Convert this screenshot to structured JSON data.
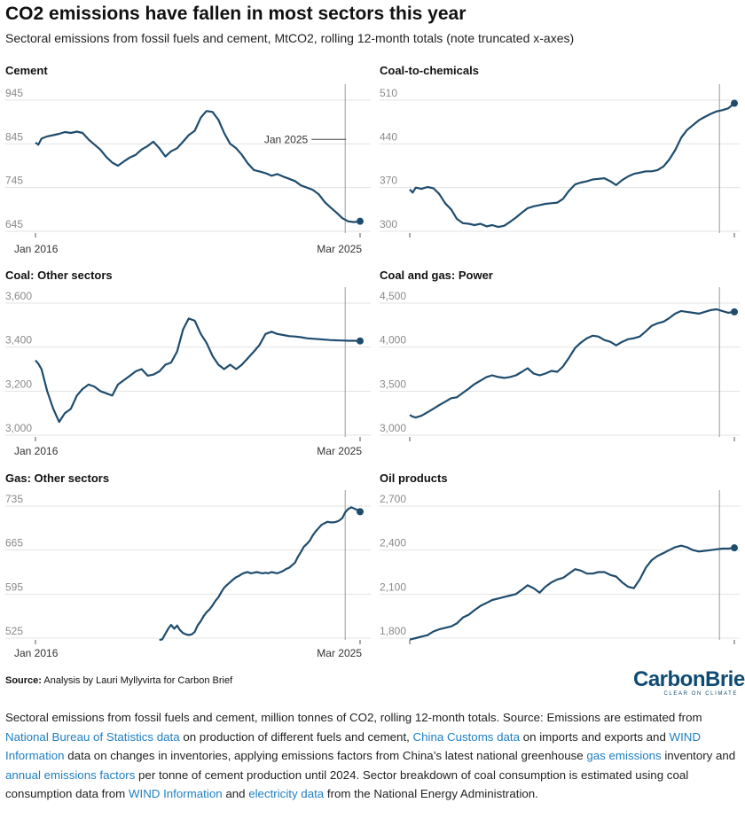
{
  "header": {
    "title": "CO2 emissions have fallen in most sectors this year",
    "subtitle": "Sectoral emissions from fossil fuels and cement, MtCO2, rolling 12-month totals (note truncated x-axes)"
  },
  "colors": {
    "line": "#1e4c6e",
    "grid": "#e3e3e3",
    "marker": "#999999",
    "tick_text": "#8a8a8a",
    "link": "#1f7fc2",
    "brand": "#0e4b73"
  },
  "chart_data": [
    {
      "type": "line",
      "title": "Cement",
      "x_range": [
        2016.0,
        2025.17
      ],
      "x_tick_labels": [
        "Jan 2016",
        "Mar 2025"
      ],
      "y_ticks": [
        645,
        745,
        845,
        945
      ],
      "y_tick_labels": [
        "645",
        "745",
        "845",
        "945"
      ],
      "ylim": [
        645,
        945
      ],
      "annotation": "Jan 2025",
      "x": [
        2016.0,
        2016.08,
        2016.17,
        2016.33,
        2016.5,
        2016.67,
        2016.83,
        2017.0,
        2017.17,
        2017.33,
        2017.5,
        2017.67,
        2017.83,
        2018.0,
        2018.17,
        2018.33,
        2018.5,
        2018.67,
        2018.83,
        2019.0,
        2019.17,
        2019.33,
        2019.5,
        2019.67,
        2019.83,
        2020.0,
        2020.17,
        2020.33,
        2020.5,
        2020.67,
        2020.83,
        2021.0,
        2021.17,
        2021.33,
        2021.5,
        2021.67,
        2021.83,
        2022.0,
        2022.17,
        2022.33,
        2022.5,
        2022.67,
        2022.83,
        2023.0,
        2023.17,
        2023.33,
        2023.5,
        2023.67,
        2023.83,
        2024.0,
        2024.17,
        2024.33,
        2024.5,
        2024.67,
        2024.83,
        2025.0,
        2025.17
      ],
      "y": [
        848,
        843,
        857,
        862,
        865,
        868,
        872,
        870,
        873,
        870,
        855,
        843,
        832,
        815,
        802,
        795,
        805,
        814,
        820,
        832,
        840,
        850,
        835,
        816,
        828,
        835,
        850,
        865,
        875,
        905,
        920,
        918,
        900,
        870,
        845,
        835,
        820,
        800,
        785,
        782,
        778,
        772,
        776,
        770,
        765,
        760,
        750,
        745,
        740,
        730,
        712,
        700,
        688,
        675,
        668,
        666,
        668
      ]
    },
    {
      "type": "line",
      "title": "Coal-to-chemicals",
      "x_range": [
        2016.0,
        2025.17
      ],
      "x_tick_labels": [],
      "y_ticks": [
        300,
        370,
        440,
        510
      ],
      "y_tick_labels": [
        "300",
        "370",
        "440",
        "510"
      ],
      "ylim": [
        300,
        510
      ],
      "x": [
        2016.0,
        2016.08,
        2016.17,
        2016.33,
        2016.5,
        2016.67,
        2016.83,
        2017.0,
        2017.17,
        2017.33,
        2017.5,
        2017.67,
        2017.83,
        2018.0,
        2018.17,
        2018.33,
        2018.5,
        2018.67,
        2018.83,
        2019.0,
        2019.17,
        2019.33,
        2019.5,
        2019.67,
        2019.83,
        2020.0,
        2020.17,
        2020.33,
        2020.5,
        2020.67,
        2020.83,
        2021.0,
        2021.17,
        2021.33,
        2021.5,
        2021.67,
        2021.83,
        2022.0,
        2022.17,
        2022.33,
        2022.5,
        2022.67,
        2022.83,
        2023.0,
        2023.17,
        2023.33,
        2023.5,
        2023.67,
        2023.83,
        2024.0,
        2024.17,
        2024.33,
        2024.5,
        2024.67,
        2024.83,
        2025.0,
        2025.17
      ],
      "y": [
        367,
        362,
        370,
        368,
        371,
        369,
        360,
        345,
        335,
        320,
        313,
        312,
        310,
        312,
        308,
        310,
        307,
        309,
        315,
        322,
        330,
        337,
        340,
        342,
        344,
        345,
        346,
        352,
        365,
        375,
        378,
        380,
        383,
        384,
        385,
        380,
        374,
        382,
        388,
        392,
        394,
        396,
        396,
        398,
        404,
        415,
        430,
        450,
        462,
        470,
        478,
        483,
        488,
        492,
        494,
        497,
        505
      ]
    },
    {
      "type": "line",
      "title": "Coal: Other sectors",
      "x_range": [
        2016.0,
        2025.17
      ],
      "x_tick_labels": [
        "Jan 2016",
        "Mar 2025"
      ],
      "y_ticks": [
        3000,
        3200,
        3400,
        3600
      ],
      "y_tick_labels": [
        "3,000",
        "3,200",
        "3,400",
        "3,600"
      ],
      "ylim": [
        3000,
        3600
      ],
      "x": [
        2016.0,
        2016.08,
        2016.17,
        2016.33,
        2016.5,
        2016.67,
        2016.83,
        2017.0,
        2017.17,
        2017.33,
        2017.5,
        2017.67,
        2017.83,
        2018.0,
        2018.17,
        2018.33,
        2018.5,
        2018.67,
        2018.83,
        2019.0,
        2019.17,
        2019.33,
        2019.5,
        2019.67,
        2019.83,
        2020.0,
        2020.17,
        2020.33,
        2020.5,
        2020.67,
        2020.83,
        2021.0,
        2021.17,
        2021.33,
        2021.5,
        2021.67,
        2021.83,
        2022.0,
        2022.17,
        2022.33,
        2022.5,
        2022.67,
        2022.83,
        2023.0,
        2023.17,
        2023.33,
        2023.5,
        2023.67,
        2023.83,
        2024.0,
        2024.17,
        2024.33,
        2024.5,
        2024.67,
        2024.83,
        2025.0,
        2025.17
      ],
      "y": [
        3340,
        3325,
        3300,
        3200,
        3120,
        3060,
        3100,
        3120,
        3180,
        3210,
        3230,
        3220,
        3200,
        3190,
        3180,
        3230,
        3250,
        3270,
        3290,
        3300,
        3270,
        3275,
        3290,
        3320,
        3330,
        3380,
        3480,
        3530,
        3520,
        3460,
        3420,
        3360,
        3320,
        3300,
        3320,
        3300,
        3320,
        3350,
        3380,
        3410,
        3460,
        3470,
        3460,
        3455,
        3450,
        3448,
        3445,
        3440,
        3438,
        3436,
        3434,
        3432,
        3431,
        3430,
        3429,
        3429,
        3428
      ]
    },
    {
      "type": "line",
      "title": "Coal and gas: Power",
      "x_range": [
        2016.0,
        2025.17
      ],
      "x_tick_labels": [],
      "y_ticks": [
        3000,
        3500,
        4000,
        4500
      ],
      "y_tick_labels": [
        "3,000",
        "3,500",
        "4,000",
        "4,500"
      ],
      "ylim": [
        3000,
        4500
      ],
      "x": [
        2016.0,
        2016.08,
        2016.17,
        2016.33,
        2016.5,
        2016.67,
        2016.83,
        2017.0,
        2017.17,
        2017.33,
        2017.5,
        2017.67,
        2017.83,
        2018.0,
        2018.17,
        2018.33,
        2018.5,
        2018.67,
        2018.83,
        2019.0,
        2019.17,
        2019.33,
        2019.5,
        2019.67,
        2019.83,
        2020.0,
        2020.17,
        2020.33,
        2020.5,
        2020.67,
        2020.83,
        2021.0,
        2021.17,
        2021.33,
        2021.5,
        2021.67,
        2021.83,
        2022.0,
        2022.17,
        2022.33,
        2022.5,
        2022.67,
        2022.83,
        2023.0,
        2023.17,
        2023.33,
        2023.5,
        2023.67,
        2023.83,
        2024.0,
        2024.17,
        2024.33,
        2024.5,
        2024.67,
        2024.83,
        2025.0,
        2025.17
      ],
      "y": [
        3230,
        3210,
        3200,
        3220,
        3260,
        3300,
        3340,
        3380,
        3420,
        3430,
        3480,
        3530,
        3580,
        3620,
        3660,
        3680,
        3660,
        3650,
        3660,
        3680,
        3720,
        3760,
        3700,
        3680,
        3700,
        3730,
        3720,
        3780,
        3880,
        3990,
        4050,
        4100,
        4130,
        4120,
        4080,
        4060,
        4020,
        4060,
        4090,
        4100,
        4120,
        4180,
        4240,
        4270,
        4290,
        4330,
        4380,
        4410,
        4400,
        4390,
        4380,
        4400,
        4420,
        4430,
        4410,
        4390,
        4400
      ]
    },
    {
      "type": "line",
      "title": "Gas: Other sectors",
      "x_range": [
        2016.0,
        2025.17
      ],
      "x_tick_labels": [
        "Jan 2016",
        "Mar 2025"
      ],
      "y_ticks": [
        525,
        595,
        665,
        735
      ],
      "y_tick_labels": [
        "525",
        "595",
        "665",
        "735"
      ],
      "ylim": [
        525,
        735
      ],
      "x": [
        2019.5,
        2019.58,
        2019.67,
        2019.75,
        2019.83,
        2019.92,
        2020.0,
        2020.08,
        2020.17,
        2020.25,
        2020.33,
        2020.42,
        2020.5,
        2020.58,
        2020.67,
        2020.75,
        2020.83,
        2020.92,
        2021.0,
        2021.08,
        2021.17,
        2021.25,
        2021.33,
        2021.42,
        2021.5,
        2021.58,
        2021.67,
        2021.75,
        2021.83,
        2021.92,
        2022.0,
        2022.08,
        2022.17,
        2022.25,
        2022.33,
        2022.42,
        2022.5,
        2022.58,
        2022.67,
        2022.75,
        2022.83,
        2022.92,
        2023.0,
        2023.08,
        2023.17,
        2023.25,
        2023.33,
        2023.42,
        2023.5,
        2023.58,
        2023.67,
        2023.75,
        2023.83,
        2023.92,
        2024.0,
        2024.08,
        2024.17,
        2024.25,
        2024.33,
        2024.42,
        2024.5,
        2024.58,
        2024.67,
        2024.75,
        2024.83,
        2024.92,
        2025.0,
        2025.08,
        2025.17
      ],
      "y": [
        522,
        523,
        532,
        540,
        546,
        540,
        545,
        538,
        533,
        531,
        530,
        531,
        535,
        545,
        552,
        560,
        566,
        571,
        577,
        584,
        590,
        598,
        605,
        610,
        614,
        618,
        622,
        624,
        627,
        629,
        630,
        628,
        629,
        630,
        629,
        628,
        629,
        628,
        630,
        629,
        628,
        630,
        632,
        635,
        637,
        641,
        645,
        655,
        662,
        670,
        675,
        680,
        688,
        695,
        700,
        705,
        708,
        710,
        709,
        709,
        710,
        712,
        716,
        725,
        730,
        733,
        731,
        729,
        726
      ]
    },
    {
      "type": "line",
      "title": "Oil products",
      "x_range": [
        2016.0,
        2025.17
      ],
      "x_tick_labels": [],
      "y_ticks": [
        1800,
        2100,
        2400,
        2700
      ],
      "y_tick_labels": [
        "1,800",
        "2,100",
        "2,400",
        "2,700"
      ],
      "ylim": [
        1800,
        2700
      ],
      "x": [
        2016.0,
        2016.08,
        2016.17,
        2016.33,
        2016.5,
        2016.67,
        2016.83,
        2017.0,
        2017.17,
        2017.33,
        2017.5,
        2017.67,
        2017.83,
        2018.0,
        2018.17,
        2018.33,
        2018.5,
        2018.67,
        2018.83,
        2019.0,
        2019.17,
        2019.33,
        2019.5,
        2019.67,
        2019.83,
        2020.0,
        2020.17,
        2020.33,
        2020.5,
        2020.67,
        2020.83,
        2021.0,
        2021.17,
        2021.33,
        2021.5,
        2021.67,
        2021.83,
        2022.0,
        2022.17,
        2022.33,
        2022.5,
        2022.67,
        2022.83,
        2023.0,
        2023.17,
        2023.33,
        2023.5,
        2023.67,
        2023.83,
        2024.0,
        2024.17,
        2024.33,
        2024.5,
        2024.67,
        2024.83,
        2025.0,
        2025.17
      ],
      "y": [
        1790,
        1795,
        1800,
        1810,
        1820,
        1845,
        1860,
        1870,
        1880,
        1900,
        1940,
        1960,
        1990,
        2020,
        2040,
        2060,
        2070,
        2080,
        2090,
        2100,
        2130,
        2160,
        2140,
        2110,
        2150,
        2180,
        2200,
        2210,
        2240,
        2270,
        2260,
        2240,
        2240,
        2250,
        2250,
        2230,
        2220,
        2180,
        2150,
        2140,
        2200,
        2280,
        2330,
        2360,
        2380,
        2400,
        2420,
        2430,
        2420,
        2400,
        2390,
        2395,
        2400,
        2405,
        2410,
        2410,
        2415
      ]
    }
  ],
  "footer": {
    "source_label": "Source:",
    "source_text": "Analysis by Lauri Myllyvirta for Carbon Brief",
    "logo_main": "CarbonBrief",
    "logo_sub": "CLEAR ON CLIMATE"
  },
  "caption": {
    "t1": "Sectoral emissions from fossil fuels and cement, million tonnes of CO2, rolling 12-month totals. Source: Emissions are estimated from ",
    "l1": "National Bureau of Statistics data",
    "t2": " on production of different fuels and cement, ",
    "l2": "China Customs data",
    "t3": " on imports and exports and ",
    "l3": "WIND Information",
    "t4": " data on changes in inventories, applying emissions factors from China’s latest national greenhouse ",
    "l4": "gas emissions",
    "t5": " inventory and ",
    "l5": "annual emissions factors",
    "t6": " per tonne of cement production until 2024. Sector breakdown of coal consumption is estimated using coal consumption data from ",
    "l6": "WIND Information",
    "t7": " and ",
    "l7": "electricity data",
    "t8": " from the National Energy Administration."
  }
}
